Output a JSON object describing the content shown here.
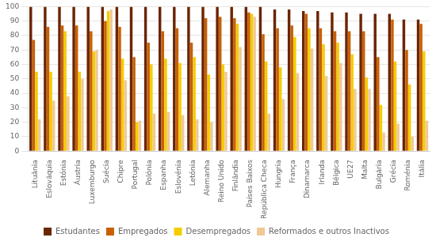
{
  "chart_data": {
    "type": "bar",
    "categories": [
      "Lituânia",
      "Eslováquia",
      "Estónia",
      "Áustria",
      "Luxemburgo",
      "Suécia",
      "Chipre",
      "Portugal",
      "Polónia",
      "Espanha",
      "Eslovénia",
      "Letónia",
      "Alemanha",
      "Reino Unido",
      "Finlândia",
      "Países Baixos",
      "República Checa",
      "Hungria",
      "França",
      "Dinamarca",
      "Irlanda",
      "Bélgica",
      "UE27",
      "Malta",
      "Bulgária",
      "Grécia",
      "Roménia",
      "Itália"
    ],
    "series": [
      {
        "name": "Estudantes",
        "color": "#6B2500",
        "values": [
          100,
          100,
          100,
          100,
          100,
          100,
          100,
          100,
          100,
          100,
          100,
          100,
          100,
          100,
          100,
          100,
          100,
          98,
          98,
          97,
          97,
          96,
          96,
          95,
          95,
          95,
          91,
          91
        ]
      },
      {
        "name": "Empregados",
        "color": "#C86000",
        "values": [
          77,
          86,
          87,
          87,
          83,
          90,
          86,
          65,
          75,
          83,
          85,
          75,
          92,
          93,
          92,
          96,
          81,
          85,
          87,
          95,
          85,
          83,
          83,
          83,
          65,
          91,
          70,
          88
        ]
      },
      {
        "name": "Desempregados",
        "color": "#F5CC00",
        "values": [
          55,
          55,
          83,
          55,
          69,
          97,
          64,
          20,
          60,
          64,
          61,
          65,
          53,
          60,
          88,
          95,
          62,
          58,
          79,
          85,
          74,
          75,
          67,
          51,
          32,
          62,
          46,
          69
        ]
      },
      {
        "name": "Reformados e outros Inactivos",
        "color": "#F0C898",
        "values": [
          22,
          35,
          38,
          50,
          70,
          98,
          49,
          21,
          26,
          27,
          25,
          22,
          20,
          55,
          72,
          93,
          26,
          36,
          54,
          71,
          52,
          61,
          43,
          43,
          13,
          19,
          10,
          21
        ]
      }
    ],
    "ylim": [
      0,
      100
    ],
    "yticks": [
      0,
      10,
      20,
      30,
      40,
      50,
      60,
      70,
      80,
      90,
      100
    ],
    "grid": true,
    "legend": "bottom"
  }
}
